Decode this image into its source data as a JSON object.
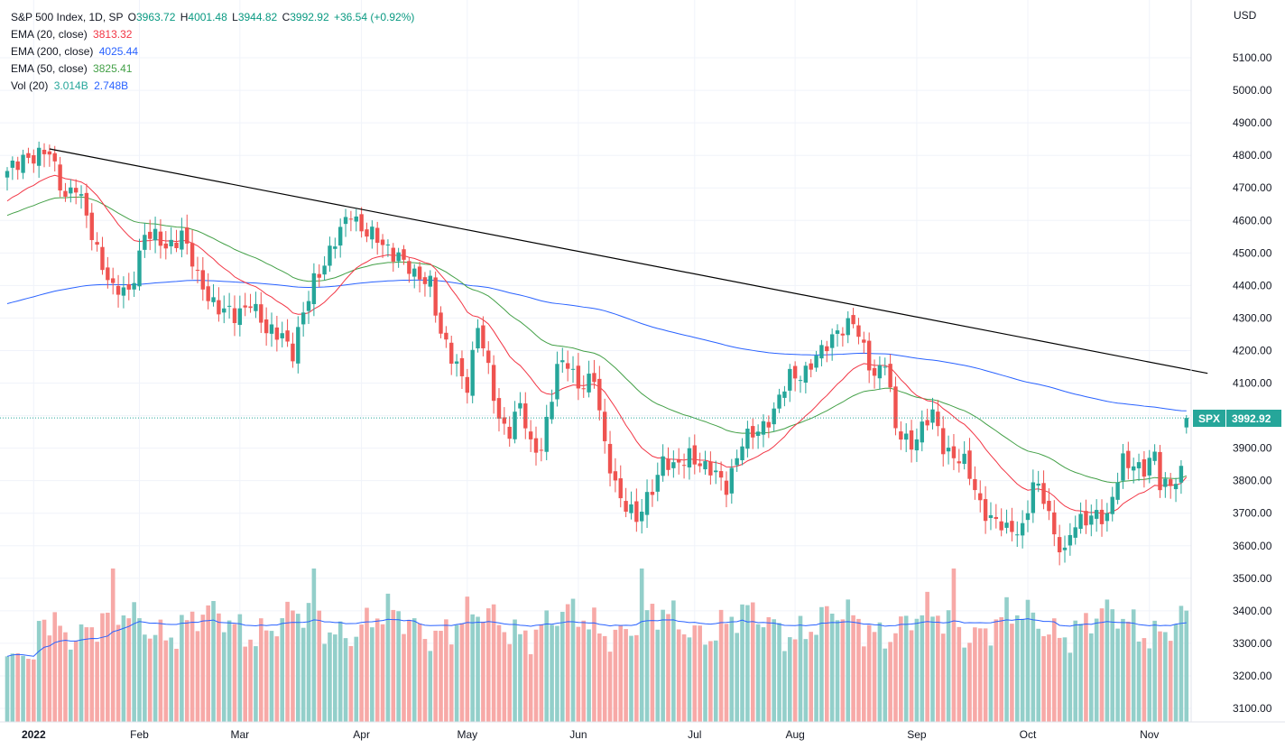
{
  "header": {
    "title": "S&P 500 Index, 1D, SP",
    "open_label": "O",
    "open": "3963.72",
    "high_label": "H",
    "high": "4001.48",
    "low_label": "L",
    "low": "3944.82",
    "close_label": "C",
    "close": "3992.92",
    "change": "+36.54 (+0.92%)"
  },
  "indicators": [
    {
      "label": "EMA (20, close)",
      "value": "3813.32",
      "color": "#f23645"
    },
    {
      "label": "EMA (200, close)",
      "value": "4025.44",
      "color": "#2962ff"
    },
    {
      "label": "EMA (50, close)",
      "value": "3825.41",
      "color": "#43a047"
    }
  ],
  "volume_indicator": {
    "label": "Vol (20)",
    "value1": "3.014B",
    "value2": "2.748B",
    "color1": "#26a69a",
    "color2": "#2962ff"
  },
  "currency": "USD",
  "price_tag": {
    "symbol": "SPX",
    "value": "3992.92"
  },
  "colors": {
    "up": "#26a69a",
    "down": "#ef5350",
    "vol_up": "#93cfca",
    "vol_down": "#f7a9a7",
    "ema20": "#f23645",
    "ema50": "#43a047",
    "ema200": "#2962ff",
    "trendline": "#000000"
  },
  "chart_data": {
    "type": "candlestick",
    "title": "S&P 500 Index, 1D, SP",
    "ylabel": "USD",
    "ylim": [
      3050,
      5250
    ],
    "y_ticks": [
      "3100.00",
      "3200.00",
      "3300.00",
      "3400.00",
      "3500.00",
      "3600.00",
      "3700.00",
      "3800.00",
      "3900.00",
      "4000.00",
      "4100.00",
      "4200.00",
      "4300.00",
      "4400.00",
      "4500.00",
      "4600.00",
      "4700.00",
      "4800.00",
      "4900.00",
      "5000.00",
      "5100.00"
    ],
    "x_ticks": [
      {
        "label": "2022",
        "index": 5,
        "bold": true
      },
      {
        "label": "Feb",
        "index": 25
      },
      {
        "label": "Mar",
        "index": 44
      },
      {
        "label": "Apr",
        "index": 67
      },
      {
        "label": "May",
        "index": 87
      },
      {
        "label": "Jun",
        "index": 108
      },
      {
        "label": "Jul",
        "index": 130
      },
      {
        "label": "Aug",
        "index": 149
      },
      {
        "label": "Sep",
        "index": 172
      },
      {
        "label": "Oct",
        "index": 193
      },
      {
        "label": "Nov",
        "index": 216
      }
    ],
    "n_bars": 224,
    "anchors": [
      [
        0,
        4740
      ],
      [
        3,
        4800
      ],
      [
        6,
        4795
      ],
      [
        8,
        4805
      ],
      [
        11,
        4680
      ],
      [
        13,
        4700
      ],
      [
        16,
        4560
      ],
      [
        20,
        4380
      ],
      [
        23,
        4380
      ],
      [
        26,
        4560
      ],
      [
        30,
        4520
      ],
      [
        33,
        4560
      ],
      [
        36,
        4420
      ],
      [
        40,
        4330
      ],
      [
        43,
        4300
      ],
      [
        46,
        4360
      ],
      [
        49,
        4250
      ],
      [
        52,
        4260
      ],
      [
        54,
        4190
      ],
      [
        58,
        4420
      ],
      [
        63,
        4560
      ],
      [
        65,
        4630
      ],
      [
        67,
        4580
      ],
      [
        71,
        4520
      ],
      [
        74,
        4500
      ],
      [
        77,
        4420
      ],
      [
        80,
        4420
      ],
      [
        82,
        4250
      ],
      [
        84,
        4170
      ],
      [
        87,
        4100
      ],
      [
        89,
        4280
      ],
      [
        91,
        4130
      ],
      [
        93,
        3990
      ],
      [
        95,
        3960
      ],
      [
        97,
        4030
      ],
      [
        99,
        3900
      ],
      [
        101,
        3910
      ],
      [
        104,
        4140
      ],
      [
        106,
        4160
      ],
      [
        108,
        4100
      ],
      [
        111,
        4110
      ],
      [
        113,
        3900
      ],
      [
        116,
        3750
      ],
      [
        119,
        3670
      ],
      [
        121,
        3750
      ],
      [
        124,
        3860
      ],
      [
        126,
        3830
      ],
      [
        129,
        3890
      ],
      [
        132,
        3830
      ],
      [
        134,
        3820
      ],
      [
        136,
        3790
      ],
      [
        139,
        3910
      ],
      [
        142,
        3960
      ],
      [
        145,
        4010
      ],
      [
        148,
        4120
      ],
      [
        151,
        4140
      ],
      [
        154,
        4190
      ],
      [
        157,
        4270
      ],
      [
        160,
        4280
      ],
      [
        162,
        4200
      ],
      [
        164,
        4130
      ],
      [
        166,
        4170
      ],
      [
        168,
        3950
      ],
      [
        171,
        3920
      ],
      [
        173,
        3960
      ],
      [
        175,
        4000
      ],
      [
        177,
        3910
      ],
      [
        179,
        3880
      ],
      [
        181,
        3850
      ],
      [
        184,
        3730
      ],
      [
        186,
        3690
      ],
      [
        189,
        3640
      ],
      [
        192,
        3660
      ],
      [
        194,
        3790
      ],
      [
        196,
        3740
      ],
      [
        198,
        3640
      ],
      [
        200,
        3580
      ],
      [
        201,
        3640
      ],
      [
        204,
        3680
      ],
      [
        206,
        3710
      ],
      [
        208,
        3680
      ],
      [
        211,
        3860
      ],
      [
        213,
        3860
      ],
      [
        215,
        3830
      ],
      [
        217,
        3870
      ],
      [
        218,
        3790
      ],
      [
        220,
        3800
      ],
      [
        222,
        3820
      ],
      [
        223,
        3993
      ]
    ],
    "volume_axis": {
      "base_price": 3050,
      "top_price": 3530
    },
    "ema20_last": 3813.32,
    "ema50_last": 3825.41,
    "ema200_last": 4025.44,
    "trendline": {
      "start": {
        "index": 8,
        "price": 4820
      },
      "end": {
        "index": 227,
        "price": 4130
      }
    },
    "last_close": 3992.92
  }
}
